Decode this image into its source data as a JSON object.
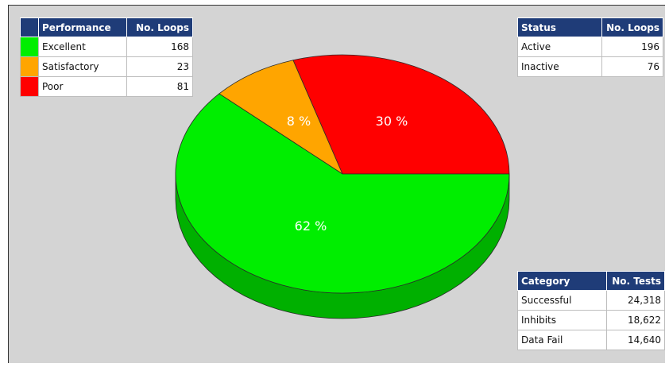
{
  "chart_data": {
    "type": "pie",
    "slices": [
      {
        "label": "Excellent",
        "value": 168,
        "percent_label": "62 %",
        "color": "#00ee00",
        "side_color": "#00b000"
      },
      {
        "label": "Satisfactory",
        "value": 23,
        "percent_label": "8 %",
        "color": "#ffa500",
        "side_color": "#c47c00"
      },
      {
        "label": "Poor",
        "value": 81,
        "percent_label": "30 %",
        "color": "#ff0000",
        "side_color": "#b00000"
      }
    ]
  },
  "performance_table": {
    "header_label": "Performance",
    "header_value": "No. Loops",
    "rows": [
      {
        "label": "Excellent",
        "value": "168",
        "color": "#00ee00"
      },
      {
        "label": "Satisfactory",
        "value": "23",
        "color": "#ffa500"
      },
      {
        "label": "Poor",
        "value": "81",
        "color": "#ff0000"
      }
    ]
  },
  "status_table": {
    "header_label": "Status",
    "header_value": "No. Loops",
    "rows": [
      {
        "label": "Active",
        "value": "196"
      },
      {
        "label": "Inactive",
        "value": "76"
      }
    ]
  },
  "category_table": {
    "header_label": "Category",
    "header_value": "No. Tests",
    "rows": [
      {
        "label": "Successful",
        "value": "24,318"
      },
      {
        "label": "Inhibits",
        "value": "18,622"
      },
      {
        "label": "Data Fail",
        "value": "14,640"
      }
    ]
  },
  "colors": {
    "header_bg": "#1f3c78",
    "panel_bg": "#d4d4d4"
  }
}
